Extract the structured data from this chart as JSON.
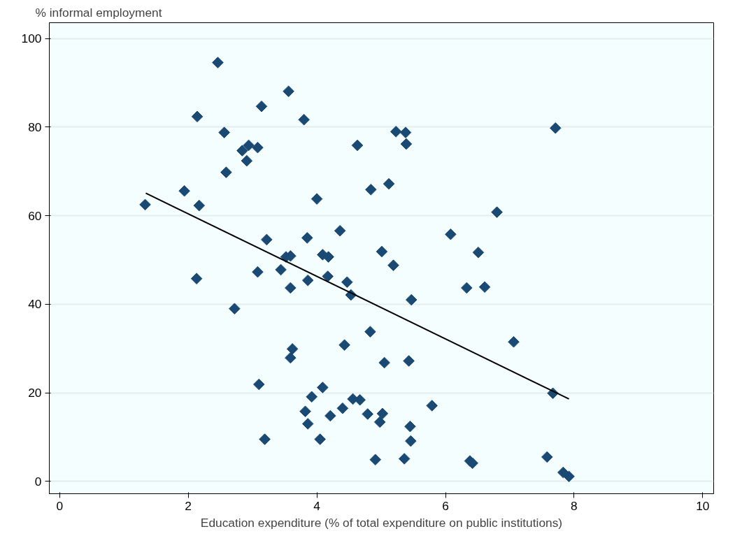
{
  "chart_data": {
    "type": "scatter",
    "xlabel": "Education expenditure (% of total expenditure on public institutions)",
    "ylabel": "% informal employment",
    "xlim": [
      -0.16,
      10.17
    ],
    "ylim": [
      -2.8,
      103.6
    ],
    "xticks": [
      0,
      2,
      4,
      6,
      8,
      10
    ],
    "yticks": [
      0,
      20,
      40,
      60,
      80,
      100
    ],
    "grid": "y",
    "series": [
      {
        "marker": "diamond",
        "color": "#1a4a73",
        "x": [
          2.46,
          3.56,
          3.14,
          2.14,
          3.8,
          2.56,
          2.84,
          2.94,
          3.08,
          2.91,
          2.59,
          4.63,
          1.94,
          2.17,
          1.33,
          4.84,
          5.12,
          4.0,
          3.22,
          3.85,
          4.36,
          5.01,
          3.52,
          3.59,
          4.09,
          4.18,
          3.08,
          3.44,
          2.13,
          3.59,
          3.86,
          4.17,
          4.47,
          4.53,
          5.05,
          2.72,
          4.83,
          4.43,
          3.62,
          3.59,
          3.1,
          4.09,
          3.92,
          4.56,
          4.67,
          4.4,
          3.82,
          4.21,
          4.79,
          5.02,
          4.98,
          3.86,
          3.19,
          4.05,
          4.91,
          5.23,
          5.38,
          5.39,
          7.71,
          6.08,
          6.8,
          6.51,
          5.19,
          6.33,
          6.61,
          5.47,
          7.06,
          5.43,
          7.67,
          5.79,
          5.45,
          5.46,
          5.36,
          6.38,
          6.42,
          7.58,
          7.83,
          7.92
        ],
        "values": [
          94.6,
          88.1,
          84.7,
          82.4,
          81.7,
          78.8,
          74.7,
          75.9,
          75.4,
          72.4,
          69.8,
          75.9,
          65.6,
          62.3,
          62.5,
          65.9,
          67.2,
          63.8,
          54.6,
          55.0,
          56.6,
          51.9,
          50.7,
          50.9,
          51.2,
          50.7,
          47.3,
          47.8,
          45.8,
          43.7,
          45.4,
          46.3,
          45.0,
          42.1,
          26.8,
          39.0,
          33.8,
          30.8,
          29.9,
          27.9,
          21.9,
          21.2,
          19.1,
          18.6,
          18.4,
          16.5,
          15.8,
          14.8,
          15.2,
          15.3,
          13.4,
          13.0,
          9.5,
          9.5,
          4.9,
          79.0,
          78.8,
          76.2,
          79.8,
          55.8,
          60.8,
          51.7,
          48.8,
          43.7,
          43.9,
          41.0,
          31.5,
          27.2,
          19.9,
          17.1,
          12.4,
          9.1,
          5.1,
          4.6,
          4.1,
          5.5,
          2.0,
          1.1
        ]
      },
      {
        "type": "line",
        "color": "#000000",
        "x": [
          1.34,
          7.92
        ],
        "values": [
          65.1,
          18.6
        ]
      }
    ]
  }
}
